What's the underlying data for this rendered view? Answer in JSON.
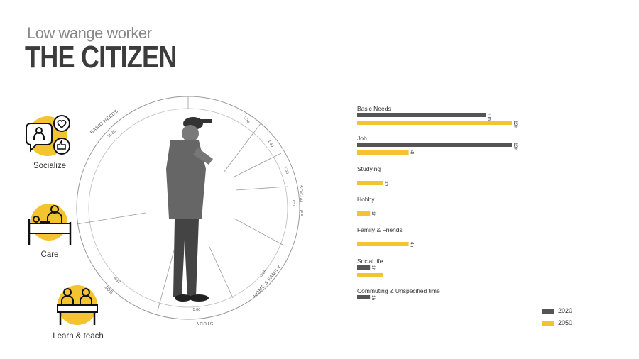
{
  "header": {
    "subtitle": "Low wange worker",
    "title": "THE CITIZEN"
  },
  "icons": [
    {
      "name": "socialize",
      "label": "Socialize",
      "icon": "chat-bubbles-icon"
    },
    {
      "name": "care",
      "label": "Care",
      "icon": "caregiver-bed-icon"
    },
    {
      "name": "learn-teach",
      "label": "Learn & teach",
      "icon": "classroom-icon"
    }
  ],
  "colors": {
    "series_2020": "#555555",
    "series_2050": "#f4c430",
    "accent": "#f4c430",
    "ring": "#999999",
    "text": "#333333"
  },
  "wheel": {
    "sector_labels": [
      "BASIC NEEDS",
      "SOCIAL LIFE",
      "HOME & FAMILY",
      "STUDY",
      "JOB"
    ],
    "value_labels": [
      "11:36",
      "2:36",
      "1:50",
      "1:55",
      "1:51",
      "3:26",
      "5:00",
      "4:12"
    ]
  },
  "chart_data": {
    "type": "bar",
    "orientation": "horizontal",
    "categories": [
      "Basic Needs",
      "Job",
      "Studying",
      "Hobby",
      "Family & Friends",
      "Social life",
      "Commuting & Unspecified time"
    ],
    "series": [
      {
        "name": "2020",
        "values": [
          10,
          12,
          null,
          null,
          null,
          1,
          1
        ],
        "labels": [
          "10h",
          "12h",
          "",
          "",
          "",
          "1h",
          "1h"
        ]
      },
      {
        "name": "2050",
        "values": [
          12,
          4,
          2,
          1,
          4,
          2,
          null
        ],
        "labels": [
          "12h",
          "4h",
          "2h",
          "1h",
          "4h",
          "",
          ""
        ]
      }
    ],
    "xlim": [
      0,
      12
    ],
    "legend_position": "bottom-right"
  }
}
